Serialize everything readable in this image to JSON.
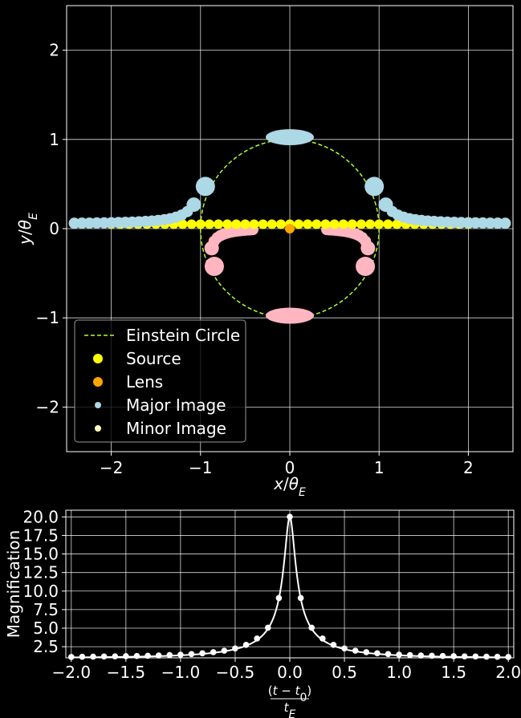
{
  "chart_data": [
    {
      "type": "scatter",
      "xlabel": "x/θ_E",
      "ylabel": "y/θ_E",
      "xlim": [
        -2.5,
        2.5
      ],
      "ylim": [
        -2.5,
        2.5
      ],
      "xticks": [
        "−2",
        "−1",
        "0",
        "1",
        "2"
      ],
      "yticks": [
        "−2",
        "−1",
        "0",
        "1",
        "2"
      ],
      "grid": true,
      "legend_position": "lower-left",
      "legend": [
        "Einstein Circle",
        "Source",
        "Lens",
        "Major Image",
        "Minor Image"
      ],
      "colors": {
        "einstein_circle": "#adff2f",
        "source": "#ffff00",
        "lens": "#ffa500",
        "major_image": "#add8e6",
        "minor_image": "#ffb6c1",
        "minor_legend": "#ffffc0"
      },
      "einstein_radius": 1,
      "lens_position": [
        0,
        0
      ],
      "source_track": {
        "y": 0.05,
        "x_from": -2.0,
        "x_to": 2.0,
        "count": 41
      }
    },
    {
      "type": "line",
      "xlabel": "(t − t₀) / t_E",
      "ylabel": "Magnification",
      "xlim": [
        -2.05,
        2.05
      ],
      "ylim": [
        1.0,
        20.9
      ],
      "xticks": [
        "−2.0",
        "−1.5",
        "−1.0",
        "−0.5",
        "0.0",
        "0.5",
        "1.0",
        "1.5",
        "2.0"
      ],
      "yticks": [
        "2.5",
        "5.0",
        "7.5",
        "10.0",
        "12.5",
        "15.0",
        "17.5",
        "20.0"
      ],
      "grid": true,
      "line_color": "#ffffff",
      "x": [
        -2.0,
        -1.9,
        -1.8,
        -1.7,
        -1.6,
        -1.5,
        -1.4,
        -1.3,
        -1.2,
        -1.1,
        -1.0,
        -0.9,
        -0.8,
        -0.7,
        -0.6,
        -0.5,
        -0.4,
        -0.3,
        -0.2,
        -0.1,
        0.0,
        0.1,
        0.2,
        0.3,
        0.4,
        0.5,
        0.6,
        0.7,
        0.8,
        0.9,
        1.0,
        1.1,
        1.2,
        1.3,
        1.4,
        1.5,
        1.6,
        1.7,
        1.8,
        1.9,
        2.0
      ],
      "y": [
        1.12,
        1.14,
        1.16,
        1.18,
        1.2,
        1.22,
        1.25,
        1.28,
        1.32,
        1.37,
        1.43,
        1.51,
        1.61,
        1.76,
        1.96,
        2.27,
        2.75,
        3.6,
        5.06,
        9.07,
        20.02,
        9.07,
        5.06,
        3.6,
        2.75,
        2.27,
        1.96,
        1.76,
        1.61,
        1.51,
        1.43,
        1.37,
        1.32,
        1.28,
        1.25,
        1.22,
        1.2,
        1.18,
        1.16,
        1.14,
        1.12
      ]
    }
  ]
}
